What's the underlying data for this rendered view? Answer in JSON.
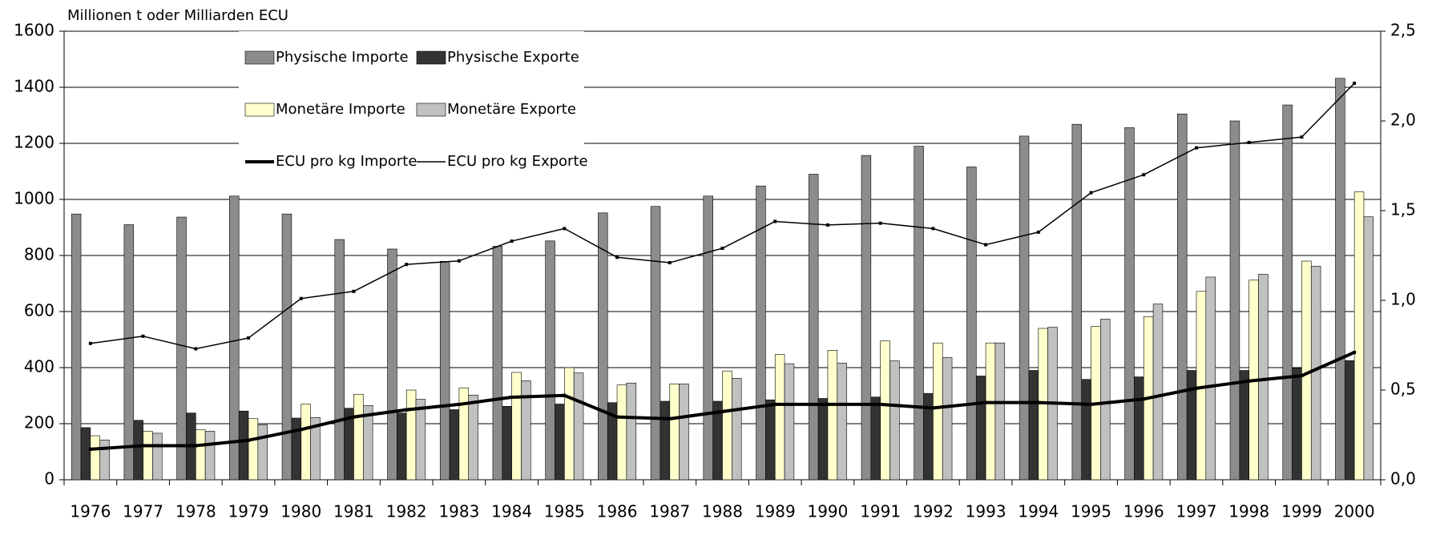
{
  "chart_data": {
    "type": "bar-line",
    "y_label": "Millionen t oder Milliarden ECU",
    "categories": [
      "1976",
      "1977",
      "1978",
      "1979",
      "1980",
      "1981",
      "1982",
      "1983",
      "1984",
      "1985",
      "1986",
      "1987",
      "1988",
      "1989",
      "1990",
      "1991",
      "1992",
      "1993",
      "1994",
      "1995",
      "1996",
      "1997",
      "1998",
      "1999",
      "2000"
    ],
    "series": [
      {
        "name": "Physische Importe",
        "type": "bar",
        "color": "#8c8c8c",
        "values": [
          948,
          910,
          937,
          1012,
          948,
          857,
          823,
          779,
          833,
          852,
          952,
          975,
          1012,
          1048,
          1090,
          1157,
          1190,
          1116,
          1226,
          1268,
          1256,
          1305,
          1280,
          1337,
          1432
        ]
      },
      {
        "name": "Physische Exporte",
        "type": "bar",
        "color": "#333333",
        "values": [
          186,
          212,
          238,
          245,
          220,
          255,
          238,
          250,
          262,
          270,
          275,
          280,
          280,
          285,
          290,
          295,
          308,
          370,
          390,
          358,
          367,
          390,
          390,
          398,
          425
        ]
      },
      {
        "name": "Monetäre Importe",
        "type": "bar",
        "color": "#ffffcc",
        "values": [
          157,
          173,
          178,
          218,
          270,
          305,
          320,
          328,
          383,
          400,
          338,
          342,
          388,
          447,
          462,
          495,
          488,
          488,
          540,
          547,
          582,
          672,
          712,
          780,
          1027
        ]
      },
      {
        "name": "Monetäre Exporte",
        "type": "bar",
        "color": "#c0c0c0",
        "values": [
          142,
          166,
          173,
          196,
          222,
          265,
          287,
          302,
          353,
          381,
          345,
          342,
          362,
          414,
          416,
          424,
          436,
          488,
          544,
          573,
          627,
          723,
          733,
          762,
          938
        ]
      },
      {
        "name": "ECU pro kg Importe",
        "type": "line",
        "axis": "y2",
        "color": "#000000",
        "width": 4,
        "values": [
          0.17,
          0.19,
          0.19,
          0.22,
          0.28,
          0.35,
          0.39,
          0.42,
          0.46,
          0.47,
          0.35,
          0.34,
          0.38,
          0.42,
          0.42,
          0.42,
          0.4,
          0.43,
          0.43,
          0.42,
          0.45,
          0.51,
          0.55,
          0.58,
          0.71
        ]
      },
      {
        "name": "ECU pro kg Exporte",
        "type": "line",
        "axis": "y2",
        "color": "#000000",
        "width": 1.5,
        "values": [
          0.76,
          0.8,
          0.73,
          0.79,
          1.01,
          1.05,
          1.2,
          1.22,
          1.33,
          1.4,
          1.24,
          1.21,
          1.29,
          1.44,
          1.42,
          1.43,
          1.4,
          1.31,
          1.38,
          1.6,
          1.7,
          1.85,
          1.88,
          1.91,
          2.21
        ]
      }
    ],
    "ylim": [
      0,
      1600
    ],
    "yticks": [
      0,
      200,
      400,
      600,
      800,
      1000,
      1200,
      1400,
      1600
    ],
    "y2lim": [
      0,
      2.5
    ],
    "y2ticks": [
      {
        "value": 0,
        "label": "0,0"
      },
      {
        "value": 0.5,
        "label": "0,5"
      },
      {
        "value": 1,
        "label": "1,0"
      },
      {
        "value": 1.5,
        "label": "1,5"
      },
      {
        "value": 2,
        "label": "2,0"
      },
      {
        "value": 2.5,
        "label": "2,5"
      }
    ],
    "grid": true,
    "legend": "top-left"
  }
}
